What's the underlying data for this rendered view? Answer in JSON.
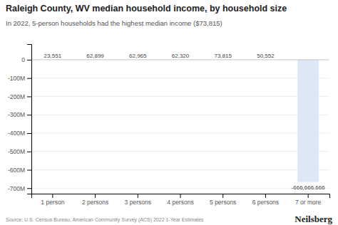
{
  "chart_data": {
    "type": "bar",
    "title": "Raleigh County, WV median household income, by household size",
    "subtitle": "In 2022, 5-person households had the highest median income ($73,815)",
    "annotations": [
      "Source: U.S. Census Bureau, American Community Survey (ACS) 2022 1-Year Estimates",
      "Neilsberg"
    ],
    "categories": [
      "1 person",
      "2 persons",
      "3 persons",
      "4 persons",
      "5 persons",
      "6 persons",
      "7 or more"
    ],
    "values": [
      23551,
      62899,
      62965,
      62320,
      73815,
      50552,
      -666666666
    ],
    "value_labels": [
      "23,551",
      "62,899",
      "62,965",
      "62,320",
      "73,815",
      "50,552",
      "-666,666,666"
    ],
    "data_labels": true,
    "colors": [
      "#d8dff0",
      "#d8dff0",
      "#d8dff0",
      "#d8dff0",
      "#d8dff0",
      "#d8dff0",
      "#dce8f5"
    ],
    "ylim": [
      -730000000,
      85000000
    ],
    "yticks": [
      0,
      {
        "value": -100000000,
        "label": "-100M"
      },
      {
        "value": -200000000,
        "label": "-200M"
      },
      {
        "value": -300000000,
        "label": "-300M"
      },
      {
        "value": -400000000,
        "label": "-400M"
      },
      {
        "value": -500000000,
        "label": "-500M"
      },
      {
        "value": -600000000,
        "label": "-600M"
      },
      {
        "value": -700000000,
        "label": "-700M"
      }
    ],
    "grid": true
  }
}
